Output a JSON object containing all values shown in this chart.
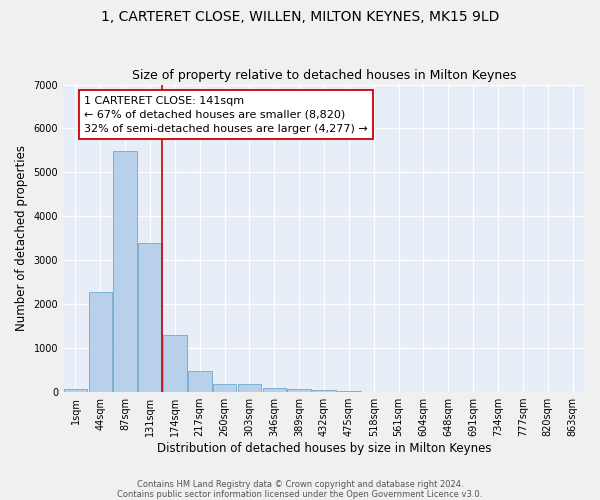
{
  "title_line1": "1, CARTERET CLOSE, WILLEN, MILTON KEYNES, MK15 9LD",
  "title_line2": "Size of property relative to detached houses in Milton Keynes",
  "xlabel": "Distribution of detached houses by size in Milton Keynes",
  "ylabel": "Number of detached properties",
  "footnote": "Contains HM Land Registry data © Crown copyright and database right 2024.\nContains public sector information licensed under the Open Government Licence v3.0.",
  "bar_labels": [
    "1sqm",
    "44sqm",
    "87sqm",
    "131sqm",
    "174sqm",
    "217sqm",
    "260sqm",
    "303sqm",
    "346sqm",
    "389sqm",
    "432sqm",
    "475sqm",
    "518sqm",
    "561sqm",
    "604sqm",
    "648sqm",
    "691sqm",
    "734sqm",
    "777sqm",
    "820sqm",
    "863sqm"
  ],
  "bar_values": [
    80,
    2280,
    5480,
    3400,
    1300,
    480,
    190,
    180,
    90,
    60,
    40,
    20,
    0,
    0,
    0,
    0,
    0,
    0,
    0,
    0,
    0
  ],
  "bar_color": "#b8d0ea",
  "bar_edgecolor": "#5a9ec8",
  "background_color": "#e8eef8",
  "fig_background": "#f0f0f0",
  "grid_color": "#ffffff",
  "vline_x": 3.5,
  "vline_color": "#cc0000",
  "annotation_text": "1 CARTERET CLOSE: 141sqm\n← 67% of detached houses are smaller (8,820)\n32% of semi-detached houses are larger (4,277) →",
  "annotation_box_edgecolor": "#cc0000",
  "ylim": [
    0,
    7000
  ],
  "yticks": [
    0,
    1000,
    2000,
    3000,
    4000,
    5000,
    6000,
    7000
  ],
  "title_fontsize": 10,
  "subtitle_fontsize": 9,
  "annotation_fontsize": 8,
  "xlabel_fontsize": 8.5,
  "ylabel_fontsize": 8.5,
  "tick_fontsize": 7
}
